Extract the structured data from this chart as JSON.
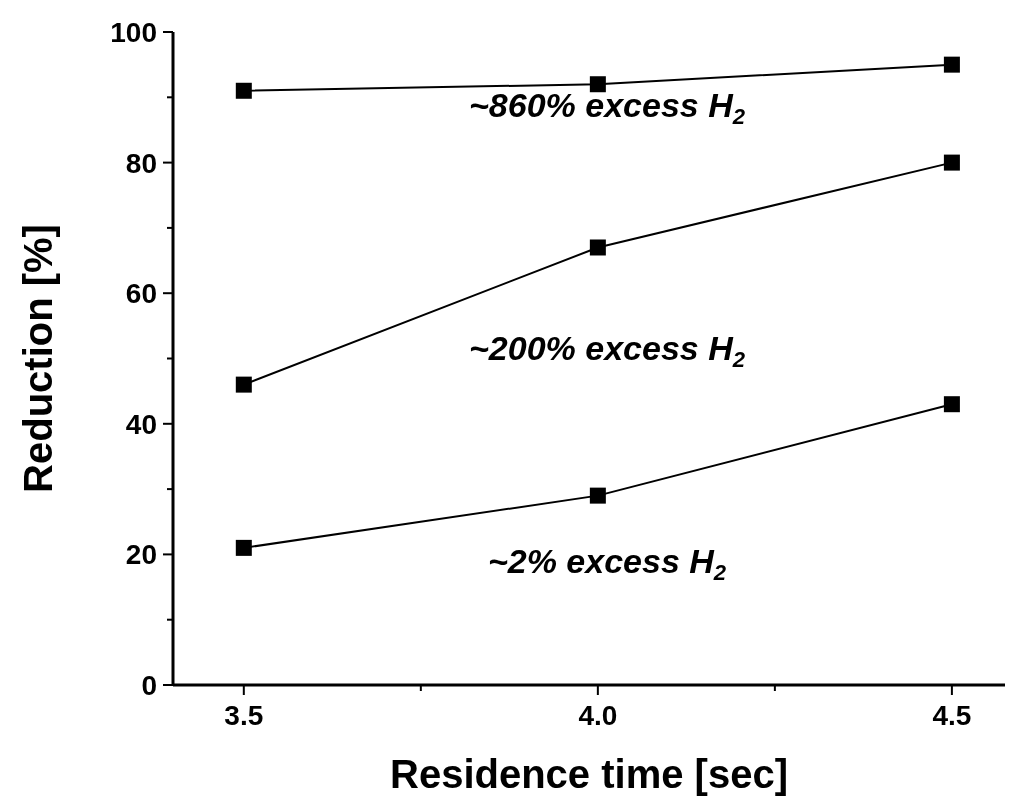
{
  "chart_data": {
    "type": "line",
    "xlabel": "Residence time [sec]",
    "ylabel": "Reduction [%]",
    "xlim": [
      3.4,
      4.575
    ],
    "xticks": [
      3.5,
      {
        "value": 3.75,
        "label": null
      },
      {
        "value": 4.0,
        "label": "4.0"
      },
      {
        "value": 4.25,
        "label": null
      },
      4.5
    ],
    "ylim": [
      0,
      100
    ],
    "yticks": [
      0,
      {
        "value": 10,
        "label": null
      },
      20,
      {
        "value": 30,
        "label": null
      },
      40,
      {
        "value": 50,
        "label": null
      },
      60,
      {
        "value": 70,
        "label": null
      },
      80,
      {
        "value": 90,
        "label": null
      },
      100
    ],
    "x": [
      3.5,
      4.0,
      4.5
    ],
    "series": [
      {
        "color": "#000000",
        "values": [
          91,
          92,
          95
        ]
      },
      {
        "color": "#000000",
        "values": [
          46,
          67,
          80
        ]
      },
      {
        "color": "#000000",
        "values": [
          21,
          29,
          43
        ]
      }
    ],
    "marker": "square",
    "line_style": "solid",
    "grid": false,
    "annotations": [
      "~860% excess H$_{2}$",
      "~200% excess H$_{2}$",
      "~2% excess H$_{2}$"
    ]
  }
}
